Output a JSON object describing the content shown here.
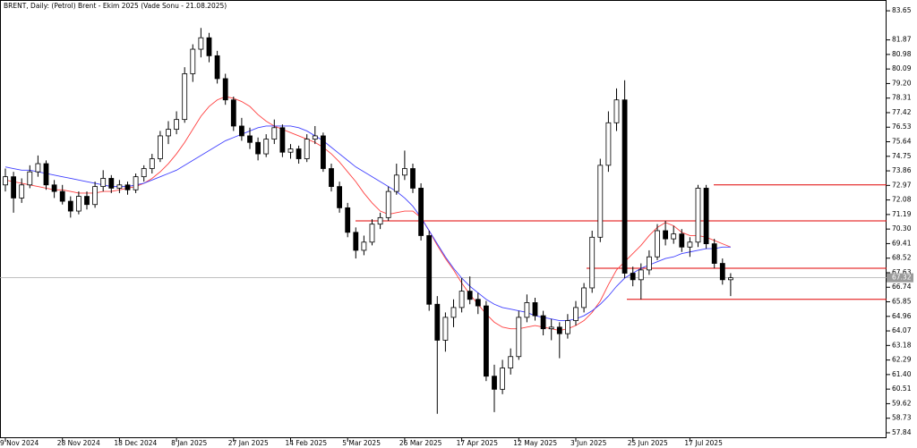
{
  "chart_data": {
    "type": "candlestick",
    "title": "BRENT, Daily:  (Petrol) Brent - Ekim 2025 (Vade Sonu - 21.08.2025)",
    "categories": [
      "9 Nov 2024",
      null,
      null,
      null,
      null,
      null,
      null,
      "28 Nov 2024",
      null,
      null,
      null,
      null,
      null,
      null,
      "18 Dec 2024",
      null,
      null,
      null,
      null,
      null,
      null,
      "8 Jan 2025",
      null,
      null,
      null,
      null,
      null,
      null,
      "27 Jan 2025",
      null,
      null,
      null,
      null,
      null,
      null,
      "14 Feb 2025",
      null,
      null,
      null,
      null,
      null,
      null,
      "5 Mar 2025",
      null,
      null,
      null,
      null,
      null,
      null,
      "26 Mar 2025",
      null,
      null,
      null,
      null,
      null,
      null,
      "17 Apr 2025",
      null,
      null,
      null,
      null,
      null,
      null,
      "12 May 2025",
      null,
      null,
      null,
      null,
      null,
      null,
      "3 Jun 2025",
      null,
      null,
      null,
      null,
      null,
      null,
      "25 Jun 2025",
      null,
      null,
      null,
      null,
      null,
      null,
      "17 Jul 2025",
      null,
      null,
      null,
      null,
      null
    ],
    "ohlc": [
      [
        73.0,
        74.0,
        72.6,
        73.5
      ],
      [
        73.5,
        73.8,
        71.3,
        72.2
      ],
      [
        72.2,
        73.4,
        71.9,
        73.0
      ],
      [
        73.0,
        74.2,
        72.8,
        73.8
      ],
      [
        73.8,
        74.8,
        73.5,
        74.3
      ],
      [
        74.3,
        74.5,
        72.7,
        73.0
      ],
      [
        73.0,
        73.3,
        72.2,
        72.6
      ],
      [
        72.6,
        73.0,
        71.8,
        72.0
      ],
      [
        72.0,
        72.3,
        71.0,
        71.4
      ],
      [
        71.4,
        72.6,
        71.2,
        72.3
      ],
      [
        72.3,
        72.6,
        71.5,
        71.8
      ],
      [
        71.8,
        73.2,
        71.6,
        72.9
      ],
      [
        72.9,
        73.9,
        72.6,
        73.4
      ],
      [
        73.4,
        73.6,
        72.5,
        72.8
      ],
      [
        72.8,
        73.3,
        72.5,
        73.0
      ],
      [
        73.0,
        73.2,
        72.4,
        72.7
      ],
      [
        72.7,
        73.7,
        72.5,
        73.5
      ],
      [
        73.5,
        74.2,
        73.2,
        74.0
      ],
      [
        74.0,
        74.9,
        73.7,
        74.6
      ],
      [
        74.6,
        76.3,
        74.4,
        76.0
      ],
      [
        76.0,
        76.9,
        75.5,
        76.4
      ],
      [
        76.4,
        77.5,
        76.1,
        77.0
      ],
      [
        77.0,
        80.2,
        76.8,
        79.8
      ],
      [
        79.8,
        81.6,
        79.3,
        81.3
      ],
      [
        81.3,
        82.6,
        80.8,
        82.0
      ],
      [
        82.0,
        82.3,
        80.5,
        80.9
      ],
      [
        80.9,
        81.2,
        79.2,
        79.5
      ],
      [
        79.5,
        79.8,
        77.9,
        78.2
      ],
      [
        78.2,
        78.4,
        76.3,
        76.6
      ],
      [
        76.6,
        77.1,
        75.7,
        76.0
      ],
      [
        76.0,
        76.5,
        75.2,
        75.6
      ],
      [
        75.6,
        75.9,
        74.5,
        74.9
      ],
      [
        74.9,
        76.1,
        74.7,
        75.8
      ],
      [
        75.8,
        77.0,
        75.5,
        76.5
      ],
      [
        76.5,
        76.7,
        74.7,
        75.0
      ],
      [
        75.0,
        75.5,
        74.6,
        75.2
      ],
      [
        75.2,
        75.4,
        74.3,
        74.6
      ],
      [
        74.6,
        76.1,
        74.4,
        75.8
      ],
      [
        75.8,
        76.6,
        75.5,
        76.0
      ],
      [
        76.0,
        76.2,
        73.8,
        74.0
      ],
      [
        74.0,
        74.3,
        72.6,
        72.9
      ],
      [
        72.9,
        73.2,
        71.3,
        71.6
      ],
      [
        71.6,
        71.9,
        69.8,
        70.1
      ],
      [
        70.1,
        70.4,
        68.5,
        69.0
      ],
      [
        69.0,
        69.9,
        68.7,
        69.5
      ],
      [
        69.5,
        70.9,
        69.3,
        70.6
      ],
      [
        70.6,
        71.3,
        70.3,
        71.0
      ],
      [
        71.0,
        72.9,
        70.8,
        72.6
      ],
      [
        72.6,
        74.3,
        72.4,
        73.6
      ],
      [
        73.6,
        75.1,
        73.3,
        74.0
      ],
      [
        74.0,
        74.3,
        72.5,
        72.8
      ],
      [
        72.8,
        73.1,
        69.6,
        69.9
      ],
      [
        69.9,
        70.2,
        65.3,
        65.7
      ],
      [
        65.7,
        66.2,
        59.0,
        63.5
      ],
      [
        63.5,
        65.2,
        62.8,
        64.9
      ],
      [
        64.9,
        66.0,
        64.3,
        65.5
      ],
      [
        65.5,
        67.3,
        65.2,
        66.5
      ],
      [
        66.5,
        67.4,
        65.7,
        66.0
      ],
      [
        66.0,
        66.4,
        65.1,
        65.6
      ],
      [
        65.6,
        65.9,
        61.0,
        61.3
      ],
      [
        61.3,
        62.0,
        59.1,
        60.5
      ],
      [
        60.5,
        62.3,
        60.2,
        61.8
      ],
      [
        61.8,
        63.0,
        61.4,
        62.5
      ],
      [
        62.5,
        65.3,
        62.3,
        64.9
      ],
      [
        64.9,
        66.3,
        64.6,
        65.8
      ],
      [
        65.8,
        66.1,
        64.7,
        65.0
      ],
      [
        65.0,
        65.3,
        63.8,
        64.2
      ],
      [
        64.2,
        64.8,
        63.5,
        64.3
      ],
      [
        64.3,
        64.6,
        62.4,
        63.9
      ],
      [
        63.9,
        65.1,
        63.6,
        64.7
      ],
      [
        64.7,
        65.9,
        64.4,
        65.5
      ],
      [
        65.5,
        67.0,
        65.2,
        66.7
      ],
      [
        66.7,
        70.2,
        66.4,
        69.8
      ],
      [
        69.8,
        74.6,
        69.5,
        74.2
      ],
      [
        74.2,
        77.5,
        73.8,
        76.8
      ],
      [
        76.8,
        78.9,
        76.3,
        78.2
      ],
      [
        78.2,
        79.4,
        67.3,
        67.6
      ],
      [
        67.6,
        68.0,
        66.8,
        67.2
      ],
      [
        67.2,
        68.2,
        66.0,
        67.8
      ],
      [
        67.8,
        69.0,
        67.5,
        68.6
      ],
      [
        68.6,
        70.6,
        68.4,
        70.2
      ],
      [
        70.2,
        70.8,
        69.3,
        69.7
      ],
      [
        69.7,
        70.5,
        69.4,
        70.0
      ],
      [
        70.0,
        70.3,
        68.9,
        69.2
      ],
      [
        69.2,
        69.8,
        68.6,
        69.5
      ],
      [
        69.5,
        73.0,
        69.2,
        72.8
      ],
      [
        72.8,
        73.0,
        69.1,
        69.4
      ],
      [
        69.4,
        69.7,
        67.9,
        68.2
      ],
      [
        68.2,
        68.5,
        66.9,
        67.2
      ],
      [
        67.2,
        67.6,
        66.2,
        67.32
      ]
    ],
    "up_color": "#ffffff",
    "down_color": "#000000",
    "moving_averages": [
      {
        "color": "#ff4040",
        "values": [
          73.3,
          73.2,
          73.1,
          73.0,
          72.9,
          72.8,
          72.7,
          72.7,
          72.6,
          72.5,
          72.5,
          72.5,
          72.6,
          72.6,
          72.7,
          72.8,
          72.9,
          73.1,
          73.4,
          73.8,
          74.3,
          74.9,
          75.6,
          76.4,
          77.2,
          77.8,
          78.2,
          78.4,
          78.3,
          78.1,
          77.8,
          77.3,
          76.9,
          76.6,
          76.4,
          76.2,
          76.0,
          75.8,
          75.6,
          75.3,
          74.9,
          74.4,
          73.8,
          73.2,
          72.5,
          71.9,
          71.4,
          71.2,
          71.3,
          71.4,
          71.4,
          71.0,
          70.2,
          69.3,
          68.5,
          67.8,
          67.0,
          66.3,
          65.7,
          65.1,
          64.6,
          64.3,
          64.2,
          64.2,
          64.3,
          64.4,
          64.3,
          64.2,
          64.1,
          64.2,
          64.4,
          64.7,
          65.2,
          65.9,
          66.9,
          67.8,
          68.3,
          68.8,
          69.3,
          69.9,
          70.4,
          70.7,
          70.5,
          70.1,
          69.9,
          69.9,
          69.8,
          69.6,
          69.4,
          69.2
        ]
      },
      {
        "color": "#4040ff",
        "values": [
          74.1,
          74.0,
          73.9,
          73.9,
          73.8,
          73.7,
          73.6,
          73.5,
          73.4,
          73.3,
          73.2,
          73.1,
          73.0,
          72.9,
          72.9,
          72.9,
          73.0,
          73.1,
          73.3,
          73.5,
          73.7,
          73.9,
          74.2,
          74.5,
          74.8,
          75.1,
          75.4,
          75.7,
          75.9,
          76.1,
          76.3,
          76.5,
          76.6,
          76.6,
          76.6,
          76.6,
          76.5,
          76.3,
          76.0,
          75.7,
          75.3,
          74.9,
          74.5,
          74.1,
          73.8,
          73.5,
          73.2,
          72.9,
          72.6,
          72.2,
          71.7,
          71.0,
          70.2,
          69.4,
          68.6,
          67.9,
          67.3,
          66.8,
          66.4,
          66.0,
          65.7,
          65.5,
          65.4,
          65.3,
          65.2,
          65.0,
          64.9,
          64.8,
          64.7,
          64.7,
          64.8,
          65.0,
          65.3,
          65.7,
          66.2,
          66.8,
          67.3,
          67.6,
          67.9,
          68.1,
          68.3,
          68.5,
          68.6,
          68.8,
          68.9,
          69.0,
          69.1,
          69.1,
          69.2,
          69.2
        ]
      }
    ],
    "levels": [
      {
        "value": 73.0,
        "color": "#e00000"
      },
      {
        "value": 70.8,
        "color": "#e00000"
      },
      {
        "value": 67.9,
        "color": "#e00000"
      },
      {
        "value": 66.0,
        "color": "#e00000"
      }
    ],
    "last_price": 67.32,
    "ylim": [
      57.51,
      84.31
    ],
    "yticks": [
      57.84,
      58.73,
      59.62,
      60.51,
      {
        "value": 61.4,
        "label": "61.40"
      },
      62.29,
      63.18,
      64.07,
      64.96,
      65.85,
      66.74,
      67.63,
      68.52,
      69.41,
      {
        "value": 70.3,
        "label": "70.30"
      },
      71.19,
      72.08,
      72.97,
      73.86,
      74.75,
      75.64,
      76.53,
      77.42,
      78.31,
      {
        "value": 79.2,
        "label": "79.20"
      },
      80.09,
      80.98,
      81.87,
      83.65
    ]
  }
}
